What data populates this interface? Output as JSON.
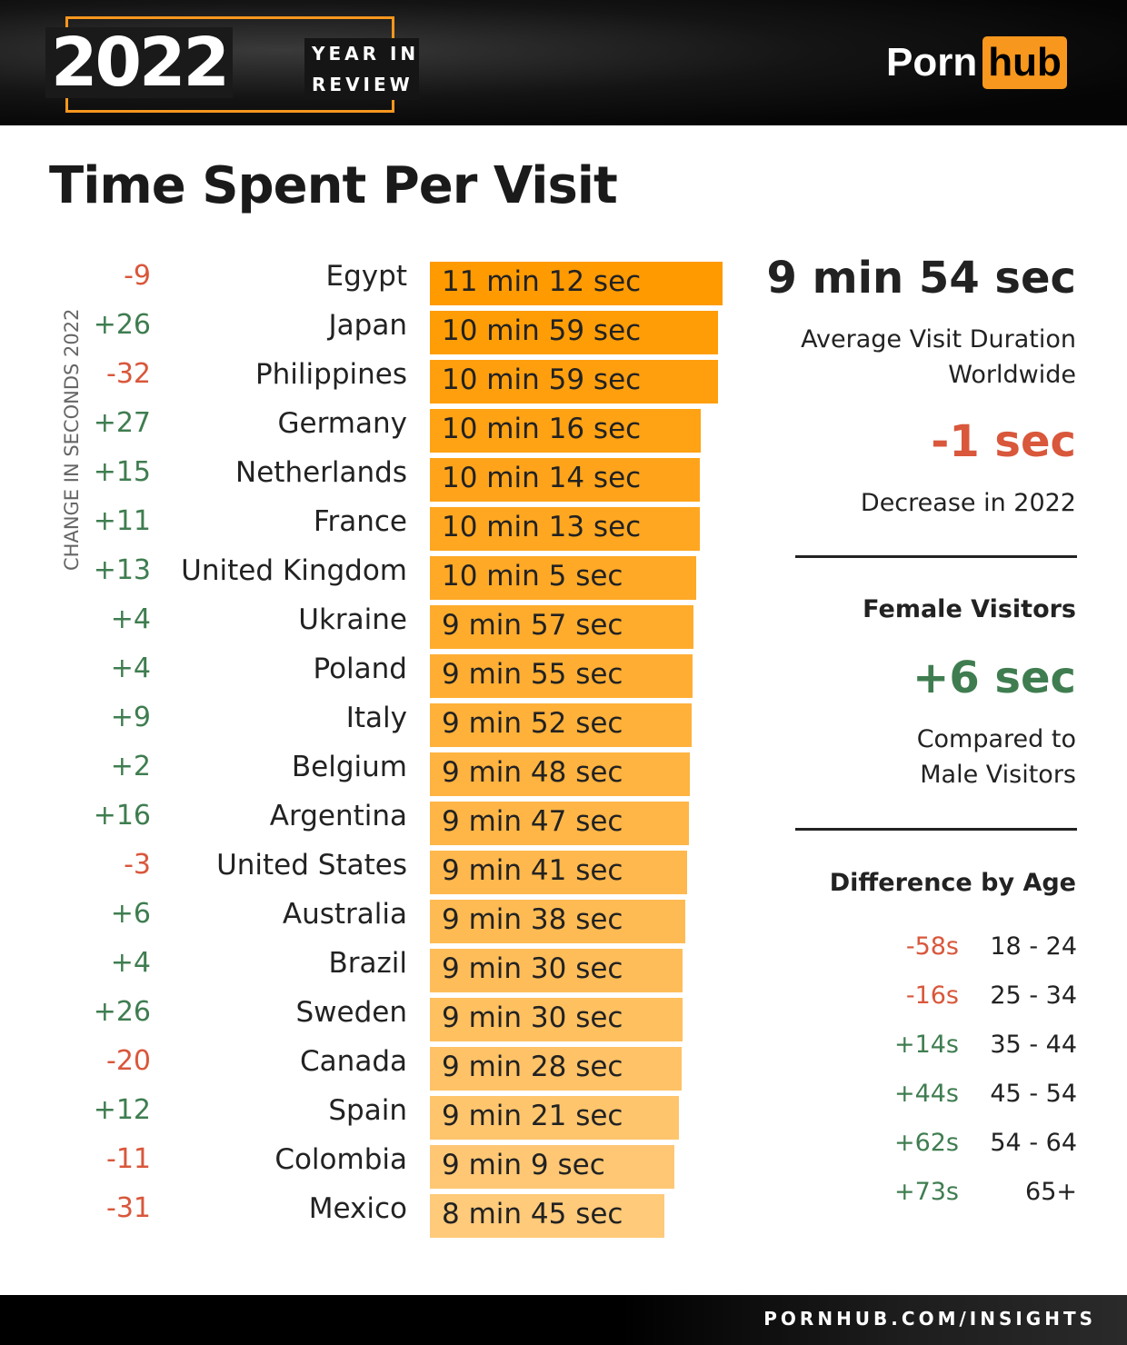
{
  "header": {
    "year": "2022",
    "tag_line1": "YEAR IN",
    "tag_line2": "REVIEW",
    "logo_text": "Porn",
    "logo_box": "hub",
    "accent": "#f7971e"
  },
  "title": "Time Spent Per Visit",
  "colors": {
    "positive": "#3f7d50",
    "negative": "#d9573b",
    "bar_top": "#ff9a00",
    "bar_bottom": "#ffca7a"
  },
  "chart_data": {
    "type": "bar",
    "orientation": "horizontal",
    "change_axis_label": "CHANGE IN SECONDS 2022",
    "categories": [
      "Egypt",
      "Japan",
      "Philippines",
      "Germany",
      "Netherlands",
      "France",
      "United Kingdom",
      "Ukraine",
      "Poland",
      "Italy",
      "Belgium",
      "Argentina",
      "United States",
      "Australia",
      "Brazil",
      "Sweden",
      "Canada",
      "Spain",
      "Colombia",
      "Mexico"
    ],
    "labels": [
      "11 min 12 sec",
      "10 min 59 sec",
      "10 min 59 sec",
      "10 min 16 sec",
      "10 min 14 sec",
      "10 min 13 sec",
      "10 min 5 sec",
      "9 min 57 sec",
      "9 min 55 sec",
      "9 min 52 sec",
      "9 min 48 sec",
      "9 min 47 sec",
      "9 min 41 sec",
      "9 min 38 sec",
      "9 min 30 sec",
      "9 min 30 sec",
      "9 min 28 sec",
      "9 min 21 sec",
      "9 min 9 sec",
      "8 min 45 sec"
    ],
    "values_seconds": [
      672,
      659,
      659,
      616,
      614,
      613,
      605,
      597,
      595,
      592,
      588,
      587,
      581,
      578,
      570,
      570,
      568,
      561,
      549,
      525
    ],
    "changes": [
      "-9",
      "+26",
      "-32",
      "+27",
      "+15",
      "+11",
      "+13",
      "+4",
      "+4",
      "+9",
      "+2",
      "+16",
      "-3",
      "+6",
      "+4",
      "+26",
      "-20",
      "+12",
      "-11",
      "-31"
    ]
  },
  "summary": {
    "avg": "9 min 54 sec",
    "avg_label1": "Average Visit Duration",
    "avg_label2": "Worldwide",
    "change": "-1 sec",
    "change_label": "Decrease in 2022",
    "female_title": "Female Visitors",
    "female_value": "+6 sec",
    "female_label1": "Compared to",
    "female_label2": "Male Visitors",
    "age_title": "Difference by Age",
    "ages": [
      {
        "diff": "-58s",
        "range": "18 - 24"
      },
      {
        "diff": "-16s",
        "range": "25 - 34"
      },
      {
        "diff": "+14s",
        "range": "35 - 44"
      },
      {
        "diff": "+44s",
        "range": "45 - 54"
      },
      {
        "diff": "+62s",
        "range": "54 - 64"
      },
      {
        "diff": "+73s",
        "range": "65+"
      }
    ]
  },
  "footer": "PORNHUB.COM/INSIGHTS"
}
